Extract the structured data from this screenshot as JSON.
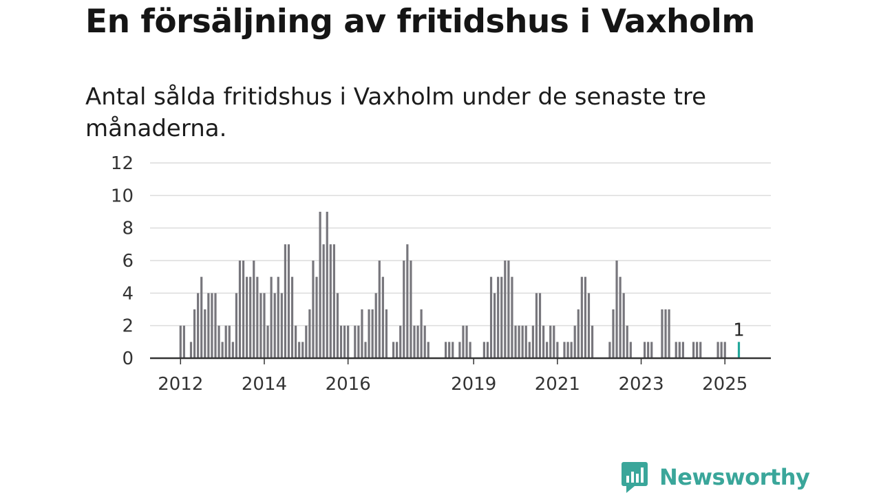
{
  "header": {
    "title": "En försäljning av fritidshus i Vaxholm",
    "subtitle": "Antal sålda fritidshus i Vaxholm under de senaste tre månaderna."
  },
  "branding": {
    "logo_text": "Newsworthy",
    "logo_icon": "bar-chart-speech-bubble-icon",
    "logo_color": "#3aa69a"
  },
  "colors": {
    "bar": "#77767c",
    "highlight": "#23a79a",
    "grid": "#dcdcdc",
    "axis": "#333333",
    "text": "#333333"
  },
  "chart_data": {
    "type": "bar",
    "title": "En försäljning av fritidshus i Vaxholm",
    "subtitle": "Antal sålda fritidshus i Vaxholm under de senaste tre månaderna.",
    "xlabel": "",
    "ylabel": "",
    "ylim": [
      0,
      12
    ],
    "yticks": [
      0,
      2,
      4,
      6,
      8,
      10,
      12
    ],
    "xticks": [
      {
        "label": "2012",
        "date": "2012-01"
      },
      {
        "label": "2014",
        "date": "2014-01"
      },
      {
        "label": "2016",
        "date": "2016-01"
      },
      {
        "label": "2019",
        "date": "2019-01"
      },
      {
        "label": "2021",
        "date": "2021-01"
      },
      {
        "label": "2023",
        "date": "2023-01"
      },
      {
        "label": "2025",
        "date": "2025-01"
      }
    ],
    "grid": true,
    "legend": "none",
    "x_start": "2012-01",
    "x_end": "2025-05",
    "highlight": {
      "date": "2025-05",
      "value": 1,
      "label": "1"
    },
    "series": [
      {
        "points": [
          [
            "2012-01",
            2
          ],
          [
            "2012-02",
            2
          ],
          [
            "2012-03",
            0
          ],
          [
            "2012-04",
            1
          ],
          [
            "2012-05",
            3
          ],
          [
            "2012-06",
            4
          ],
          [
            "2012-07",
            5
          ],
          [
            "2012-08",
            3
          ],
          [
            "2012-09",
            4
          ],
          [
            "2012-10",
            4
          ],
          [
            "2012-11",
            4
          ],
          [
            "2012-12",
            2
          ],
          [
            "2013-01",
            1
          ],
          [
            "2013-02",
            2
          ],
          [
            "2013-03",
            2
          ],
          [
            "2013-04",
            1
          ],
          [
            "2013-05",
            4
          ],
          [
            "2013-06",
            6
          ],
          [
            "2013-07",
            6
          ],
          [
            "2013-08",
            5
          ],
          [
            "2013-09",
            5
          ],
          [
            "2013-10",
            6
          ],
          [
            "2013-11",
            5
          ],
          [
            "2013-12",
            4
          ],
          [
            "2014-01",
            4
          ],
          [
            "2014-02",
            2
          ],
          [
            "2014-03",
            5
          ],
          [
            "2014-04",
            4
          ],
          [
            "2014-05",
            5
          ],
          [
            "2014-06",
            4
          ],
          [
            "2014-07",
            7
          ],
          [
            "2014-08",
            7
          ],
          [
            "2014-09",
            5
          ],
          [
            "2014-10",
            2
          ],
          [
            "2014-11",
            1
          ],
          [
            "2014-12",
            1
          ],
          [
            "2015-01",
            2
          ],
          [
            "2015-02",
            3
          ],
          [
            "2015-03",
            6
          ],
          [
            "2015-04",
            5
          ],
          [
            "2015-05",
            9
          ],
          [
            "2015-06",
            7
          ],
          [
            "2015-07",
            9
          ],
          [
            "2015-08",
            7
          ],
          [
            "2015-09",
            7
          ],
          [
            "2015-10",
            4
          ],
          [
            "2015-11",
            2
          ],
          [
            "2015-12",
            2
          ],
          [
            "2016-01",
            2
          ],
          [
            "2016-02",
            0
          ],
          [
            "2016-03",
            2
          ],
          [
            "2016-04",
            2
          ],
          [
            "2016-05",
            3
          ],
          [
            "2016-06",
            1
          ],
          [
            "2016-07",
            3
          ],
          [
            "2016-08",
            3
          ],
          [
            "2016-09",
            4
          ],
          [
            "2016-10",
            6
          ],
          [
            "2016-11",
            5
          ],
          [
            "2016-12",
            3
          ],
          [
            "2017-01",
            0
          ],
          [
            "2017-02",
            1
          ],
          [
            "2017-03",
            1
          ],
          [
            "2017-04",
            2
          ],
          [
            "2017-05",
            6
          ],
          [
            "2017-06",
            7
          ],
          [
            "2017-07",
            6
          ],
          [
            "2017-08",
            2
          ],
          [
            "2017-09",
            2
          ],
          [
            "2017-10",
            3
          ],
          [
            "2017-11",
            2
          ],
          [
            "2017-12",
            1
          ],
          [
            "2018-01",
            0
          ],
          [
            "2018-02",
            0
          ],
          [
            "2018-03",
            0
          ],
          [
            "2018-04",
            0
          ],
          [
            "2018-05",
            1
          ],
          [
            "2018-06",
            1
          ],
          [
            "2018-07",
            1
          ],
          [
            "2018-08",
            0
          ],
          [
            "2018-09",
            1
          ],
          [
            "2018-10",
            2
          ],
          [
            "2018-11",
            2
          ],
          [
            "2018-12",
            1
          ],
          [
            "2019-01",
            0
          ],
          [
            "2019-02",
            0
          ],
          [
            "2019-03",
            0
          ],
          [
            "2019-04",
            1
          ],
          [
            "2019-05",
            1
          ],
          [
            "2019-06",
            5
          ],
          [
            "2019-07",
            4
          ],
          [
            "2019-08",
            5
          ],
          [
            "2019-09",
            5
          ],
          [
            "2019-10",
            6
          ],
          [
            "2019-11",
            6
          ],
          [
            "2019-12",
            5
          ],
          [
            "2020-01",
            2
          ],
          [
            "2020-02",
            2
          ],
          [
            "2020-03",
            2
          ],
          [
            "2020-04",
            2
          ],
          [
            "2020-05",
            1
          ],
          [
            "2020-06",
            2
          ],
          [
            "2020-07",
            4
          ],
          [
            "2020-08",
            4
          ],
          [
            "2020-09",
            2
          ],
          [
            "2020-10",
            1
          ],
          [
            "2020-11",
            2
          ],
          [
            "2020-12",
            2
          ],
          [
            "2021-01",
            1
          ],
          [
            "2021-02",
            0
          ],
          [
            "2021-03",
            1
          ],
          [
            "2021-04",
            1
          ],
          [
            "2021-05",
            1
          ],
          [
            "2021-06",
            2
          ],
          [
            "2021-07",
            3
          ],
          [
            "2021-08",
            5
          ],
          [
            "2021-09",
            5
          ],
          [
            "2021-10",
            4
          ],
          [
            "2021-11",
            2
          ],
          [
            "2021-12",
            0
          ],
          [
            "2022-01",
            0
          ],
          [
            "2022-02",
            0
          ],
          [
            "2022-03",
            0
          ],
          [
            "2022-04",
            1
          ],
          [
            "2022-05",
            3
          ],
          [
            "2022-06",
            6
          ],
          [
            "2022-07",
            5
          ],
          [
            "2022-08",
            4
          ],
          [
            "2022-09",
            2
          ],
          [
            "2022-10",
            1
          ],
          [
            "2022-11",
            0
          ],
          [
            "2022-12",
            0
          ],
          [
            "2023-01",
            0
          ],
          [
            "2023-02",
            1
          ],
          [
            "2023-03",
            1
          ],
          [
            "2023-04",
            1
          ],
          [
            "2023-05",
            0
          ],
          [
            "2023-06",
            0
          ],
          [
            "2023-07",
            3
          ],
          [
            "2023-08",
            3
          ],
          [
            "2023-09",
            3
          ],
          [
            "2023-10",
            0
          ],
          [
            "2023-11",
            1
          ],
          [
            "2023-12",
            1
          ],
          [
            "2024-01",
            1
          ],
          [
            "2024-02",
            0
          ],
          [
            "2024-03",
            0
          ],
          [
            "2024-04",
            1
          ],
          [
            "2024-05",
            1
          ],
          [
            "2024-06",
            1
          ],
          [
            "2024-07",
            0
          ],
          [
            "2024-08",
            0
          ],
          [
            "2024-09",
            0
          ],
          [
            "2024-10",
            0
          ],
          [
            "2024-11",
            1
          ],
          [
            "2024-12",
            1
          ],
          [
            "2025-01",
            1
          ],
          [
            "2025-02",
            0
          ],
          [
            "2025-03",
            0
          ],
          [
            "2025-04",
            0
          ],
          [
            "2025-05",
            1
          ]
        ]
      }
    ]
  }
}
